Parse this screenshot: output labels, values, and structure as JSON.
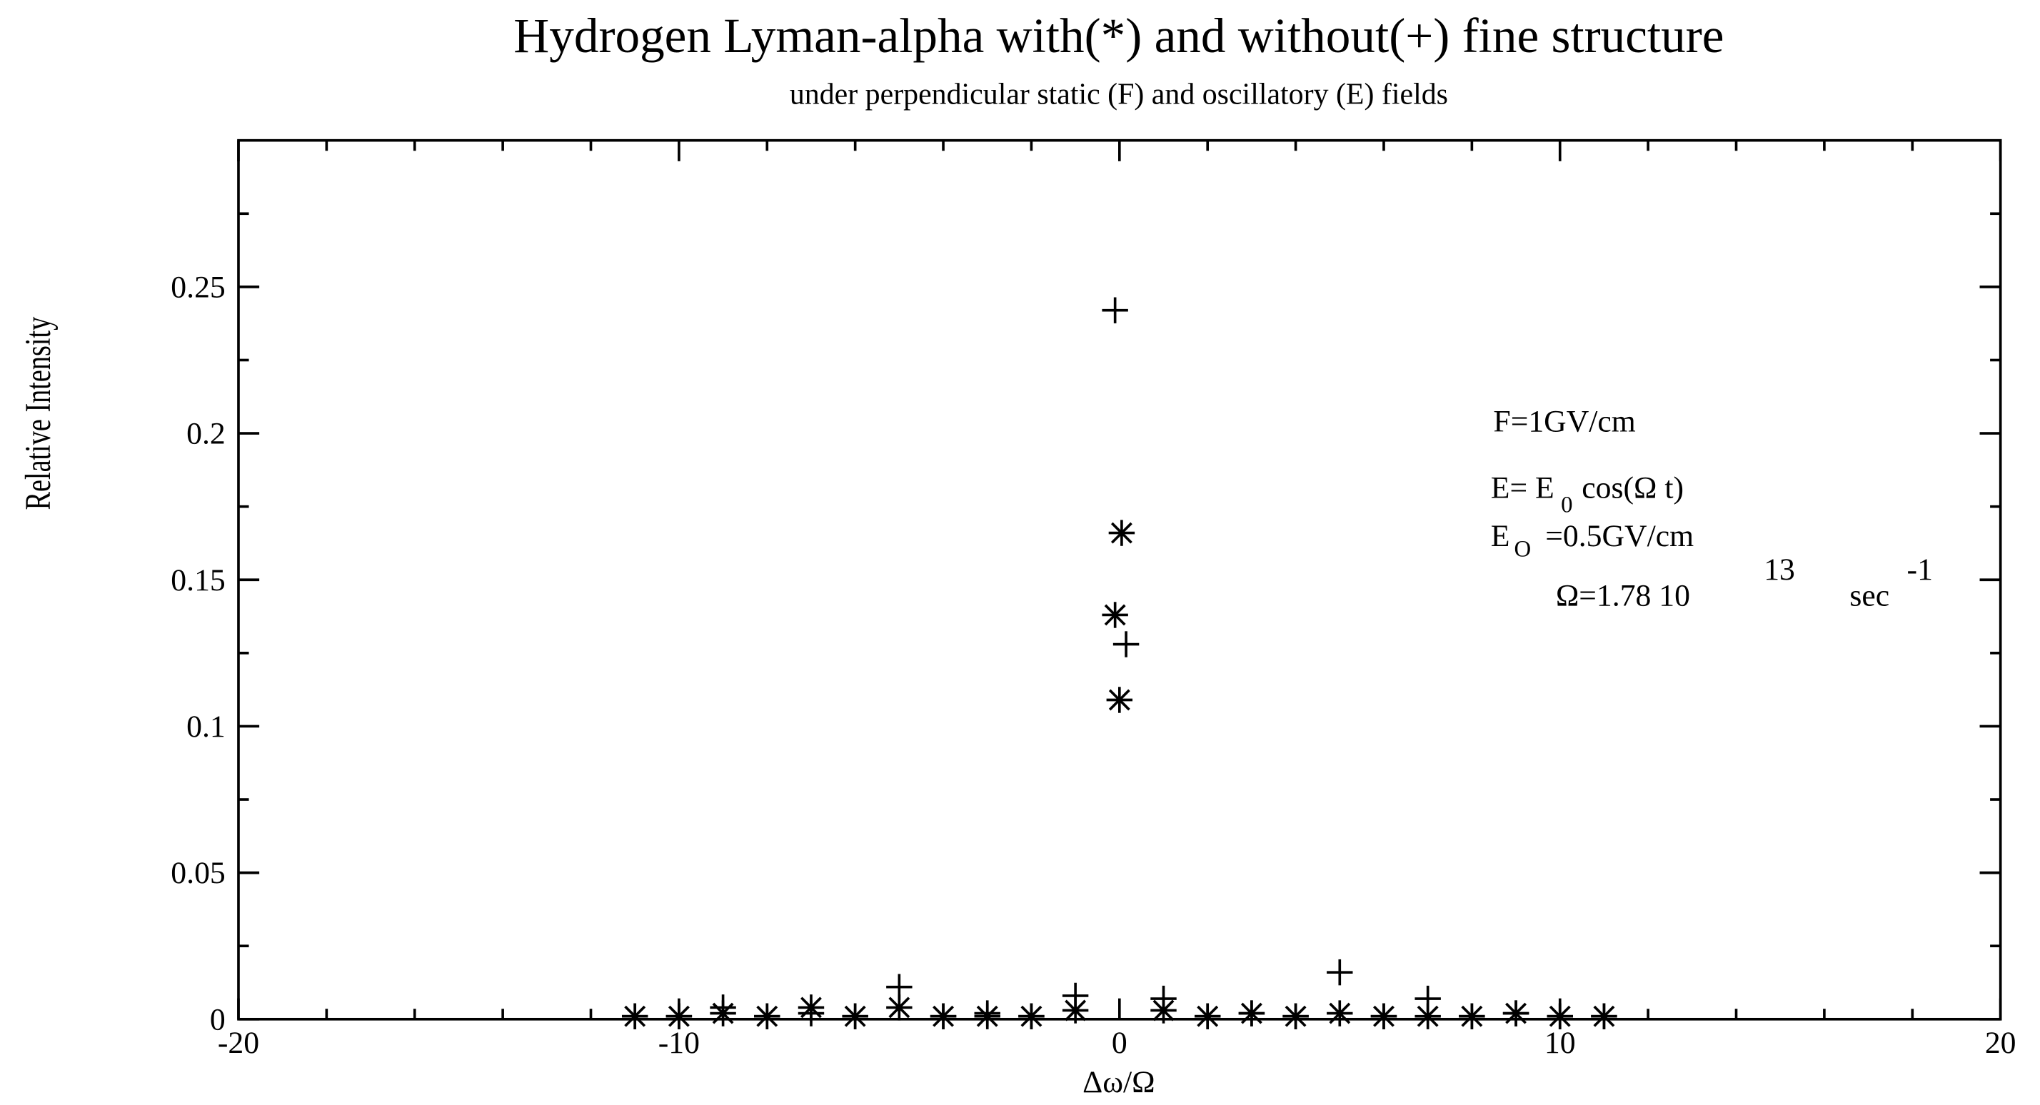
{
  "chart_data": {
    "type": "scatter",
    "title": "Hydrogen Lyman-alpha with(*) and without(+) fine structure",
    "subtitle": "under perpendicular static (F) and oscillatory (E) fields",
    "x_label": "Δω/Ω",
    "y_label": "Relative Intensity",
    "xlim": [
      -20,
      20
    ],
    "xticks": [
      -20,
      -10,
      0,
      10,
      20
    ],
    "ylim": [
      0,
      0.3
    ],
    "yticks": [
      0,
      0.05,
      0.1,
      0.15,
      0.2,
      0.25
    ],
    "color": "#000000",
    "series": [
      {
        "marker": "star",
        "x": [
          -11,
          -10,
          -9,
          -8,
          -7,
          -6,
          -5,
          -4,
          -3,
          -2,
          -1,
          -0.1,
          0,
          0.05,
          1,
          2,
          3,
          4,
          5,
          6,
          7,
          8,
          9,
          10,
          11
        ],
        "values": [
          0.001,
          0.001,
          0.002,
          0.001,
          0.004,
          0.001,
          0.004,
          0.001,
          0.001,
          0.001,
          0.003,
          0.138,
          0.109,
          0.166,
          0.003,
          0.001,
          0.002,
          0.001,
          0.002,
          0.001,
          0.001,
          0.001,
          0.002,
          0.001,
          0.001
        ]
      },
      {
        "marker": "plus",
        "x": [
          -11,
          -10,
          -9,
          -8,
          -7,
          -6,
          -5,
          -4,
          -3,
          -2,
          -1,
          -0.1,
          0.15,
          1,
          2,
          3,
          4,
          5,
          6,
          7,
          8,
          9,
          10,
          11
        ],
        "values": [
          0.001,
          0.001,
          0.004,
          0.001,
          0.002,
          0.001,
          0.011,
          0.001,
          0.002,
          0.001,
          0.008,
          0.242,
          0.128,
          0.007,
          0.001,
          0.002,
          0.001,
          0.016,
          0.001,
          0.007,
          0.001,
          0.002,
          0.001,
          0.001
        ]
      }
    ],
    "annotations": [
      "F=1GV/cm",
      "E= E",
      "0",
      "cos(Ω t)",
      "E",
      "O",
      "=0.5GV/cm",
      "Ω=1.78 10",
      "13",
      "sec",
      "-1"
    ]
  }
}
